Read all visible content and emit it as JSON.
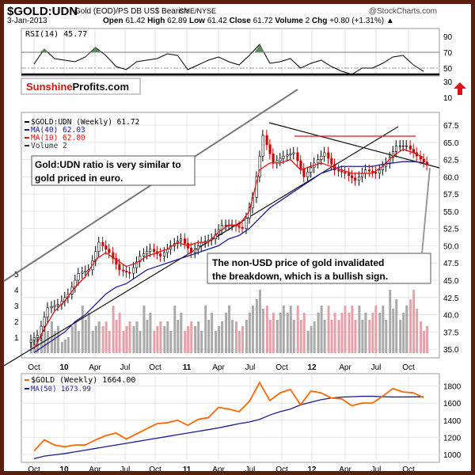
{
  "header": {
    "symbol": "$GOLD:UDN",
    "description": "Gold (EOD)/PS DB US$ Bearish",
    "exchange": "CME/NYSE",
    "copyright": "@StockCharts.com",
    "date": "3-Jan-2013",
    "open_label": "Open",
    "open": "61.42",
    "high_label": "High",
    "high": "62.89",
    "low_label": "Low",
    "low": "61.42",
    "close_label": "Close",
    "close": "61.72",
    "volume_label": "Volume",
    "volume": "2",
    "chg_label": "Chg",
    "chg": "+0.80 (+1.31%)"
  },
  "logo": {
    "text_red": "Sunshine",
    "text_black": "Profits.com"
  },
  "colors": {
    "border": "#5a1e0e",
    "up": "#000000",
    "down": "#cc0000",
    "ma40": "#1a1a99",
    "ma10": "#ee1111",
    "gold": "#ff6600",
    "rsi_fill": "#5e8a5e",
    "vol_up": "#aaaaaa",
    "vol_down": "#e8a0a8"
  },
  "chart_data": [
    {
      "type": "line",
      "panel": "rsi",
      "legend": "RSI(14) 45.77",
      "x": [
        "2009-10",
        "2009-11",
        "2009-12",
        "2010-01",
        "2010-02",
        "2010-03",
        "2010-04",
        "2010-05",
        "2010-06",
        "2010-07",
        "2010-08",
        "2010-09",
        "2010-10",
        "2010-11",
        "2010-12",
        "2011-01",
        "2011-02",
        "2011-03",
        "2011-04",
        "2011-05",
        "2011-06",
        "2011-07",
        "2011-08",
        "2011-09",
        "2011-10",
        "2011-11",
        "2011-12",
        "2012-01",
        "2012-02",
        "2012-03",
        "2012-04",
        "2012-05",
        "2012-06",
        "2012-07",
        "2012-08",
        "2012-09",
        "2012-10",
        "2012-11",
        "2012-12"
      ],
      "values": [
        55,
        74,
        62,
        60,
        58,
        64,
        76,
        66,
        52,
        48,
        58,
        60,
        62,
        68,
        66,
        48,
        54,
        60,
        64,
        58,
        54,
        66,
        80,
        56,
        58,
        62,
        50,
        56,
        60,
        52,
        46,
        42,
        50,
        50,
        56,
        64,
        66,
        54,
        45.77
      ],
      "yticks": [
        10,
        30,
        50,
        70,
        90
      ],
      "overbought": 70,
      "midline": 50
    },
    {
      "type": "candlestick",
      "panel": "price",
      "legend": [
        {
          "name": "$GOLD:UDN (Weekly) 61.72"
        },
        {
          "name": "MA(40) 62.03"
        },
        {
          "name": "MA(10) 62.80"
        },
        {
          "name": "Volume 2"
        }
      ],
      "x": [
        "2009-10",
        "2009-11",
        "2009-12",
        "2010-01",
        "2010-02",
        "2010-03",
        "2010-04",
        "2010-05",
        "2010-06",
        "2010-07",
        "2010-08",
        "2010-09",
        "2010-10",
        "2010-11",
        "2010-12",
        "2011-01",
        "2011-02",
        "2011-03",
        "2011-04",
        "2011-05",
        "2011-06",
        "2011-07",
        "2011-08",
        "2011-09",
        "2011-10",
        "2011-11",
        "2011-12",
        "2012-01",
        "2012-02",
        "2012-03",
        "2012-04",
        "2012-05",
        "2012-06",
        "2012-07",
        "2012-08",
        "2012-09",
        "2012-10",
        "2012-11",
        "2012-12"
      ],
      "close": [
        37,
        41,
        41.5,
        43,
        46,
        46.5,
        50.5,
        49,
        46.5,
        46,
        48.5,
        49.5,
        48.5,
        50,
        51,
        49,
        50.5,
        51,
        53,
        53,
        52.5,
        57,
        66,
        62,
        63,
        63.5,
        60,
        62,
        63.5,
        61,
        60.5,
        59.5,
        61,
        60.5,
        62,
        64.5,
        64.5,
        63,
        61.72
      ],
      "ma10": [
        35,
        38,
        40.5,
        42,
        44,
        45.5,
        48,
        49,
        48,
        47,
        47.5,
        48.5,
        49,
        49.5,
        50.5,
        50,
        50.5,
        50.5,
        52,
        53,
        53,
        55,
        61,
        62,
        62,
        62.5,
        61,
        61.5,
        62,
        61.5,
        61,
        60.5,
        60.5,
        60.5,
        61.5,
        63,
        64,
        63.5,
        62.8
      ],
      "ma40": [
        34.5,
        35.5,
        36.5,
        37.5,
        39,
        40,
        41.5,
        43,
        44,
        44.5,
        45.5,
        46.5,
        47,
        47.5,
        48,
        48.5,
        49,
        49.5,
        50,
        51,
        51.5,
        52.5,
        54,
        55.5,
        56.5,
        57.5,
        58.5,
        59.5,
        60.5,
        61,
        61.5,
        61.5,
        61.5,
        61.5,
        61.8,
        62,
        62.2,
        62.2,
        62.03
      ],
      "volume": [
        1,
        2,
        2,
        1,
        2,
        3,
        2,
        2,
        3,
        2,
        2,
        3,
        2,
        2,
        3,
        2,
        2,
        3,
        2,
        3,
        2,
        3,
        4,
        3,
        3,
        3,
        3,
        2,
        3,
        3,
        3,
        3,
        3,
        3,
        3,
        4,
        3,
        4,
        2
      ],
      "yticks": [
        35.0,
        37.5,
        40.0,
        42.5,
        45.0,
        47.5,
        50.0,
        52.5,
        55.0,
        57.5,
        60.0,
        62.5,
        65.0,
        67.5
      ],
      "volume_ticks": [
        1,
        2,
        3,
        4,
        5
      ],
      "xticks": [
        "Oct",
        "10",
        "Apr",
        "Jul",
        "Oct",
        "11",
        "Apr",
        "Jul",
        "Oct",
        "12",
        "Apr",
        "Jul",
        "Oct"
      ],
      "annotations": [
        "Gold:UDN ratio is very similar to gold priced in euro.",
        "The non-USD price of gold invalidated the breakdown, which is a bullish sign."
      ]
    },
    {
      "type": "line",
      "panel": "gold",
      "series": [
        {
          "name": "$GOLD (Weekly) 1664.00",
          "values": [
            1040,
            1170,
            1110,
            1090,
            1110,
            1110,
            1170,
            1220,
            1250,
            1180,
            1240,
            1300,
            1360,
            1370,
            1400,
            1340,
            1410,
            1430,
            1550,
            1530,
            1500,
            1620,
            1840,
            1630,
            1720,
            1760,
            1580,
            1740,
            1720,
            1660,
            1650,
            1570,
            1600,
            1600,
            1680,
            1770,
            1730,
            1720,
            1664
          ]
        },
        {
          "name": "MA(50) 1673.99",
          "values": [
            950,
            980,
            995,
            1010,
            1030,
            1050,
            1070,
            1090,
            1110,
            1130,
            1150,
            1170,
            1190,
            1210,
            1230,
            1250,
            1270,
            1290,
            1310,
            1335,
            1360,
            1380,
            1410,
            1460,
            1500,
            1530,
            1580,
            1610,
            1640,
            1660,
            1670,
            1675,
            1680,
            1680,
            1675,
            1672,
            1672,
            1673,
            1673.99
          ]
        }
      ],
      "x": [
        "2009-10",
        "2009-11",
        "2009-12",
        "2010-01",
        "2010-02",
        "2010-03",
        "2010-04",
        "2010-05",
        "2010-06",
        "2010-07",
        "2010-08",
        "2010-09",
        "2010-10",
        "2010-11",
        "2010-12",
        "2011-01",
        "2011-02",
        "2011-03",
        "2011-04",
        "2011-05",
        "2011-06",
        "2011-07",
        "2011-08",
        "2011-09",
        "2011-10",
        "2011-11",
        "2011-12",
        "2012-01",
        "2012-02",
        "2012-03",
        "2012-04",
        "2012-05",
        "2012-06",
        "2012-07",
        "2012-08",
        "2012-09",
        "2012-10",
        "2012-11",
        "2012-12"
      ],
      "yticks": [
        1000,
        1200,
        1400,
        1600,
        1800
      ],
      "xticks": [
        "Oct",
        "10",
        "Apr",
        "Jul",
        "Oct",
        "11",
        "Apr",
        "Jul",
        "Oct",
        "12",
        "Apr",
        "Jul",
        "Oct"
      ]
    }
  ]
}
